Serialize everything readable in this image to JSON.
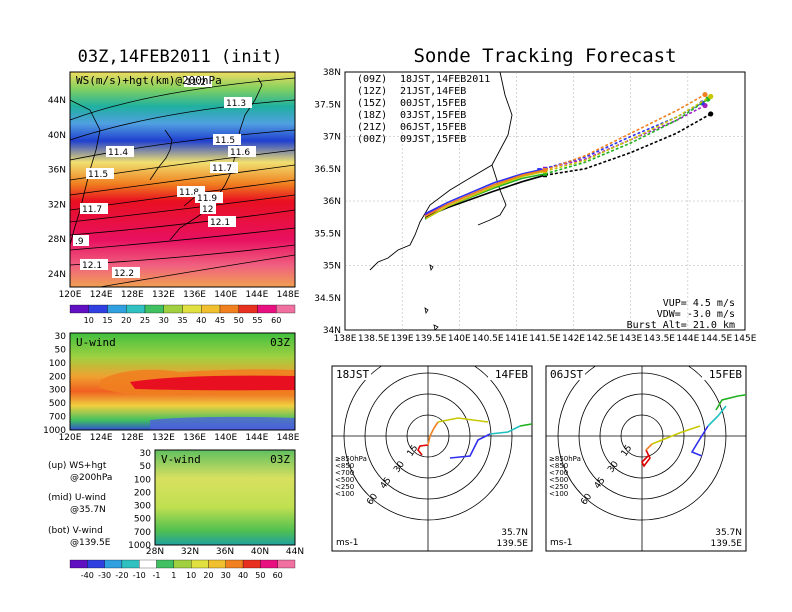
{
  "titles": {
    "left": "03Z,14FEB2011 (init)",
    "right": "Sonde Tracking Forecast"
  },
  "map_ws": {
    "label": "WS(m/s)+hgt(km)@200hPa",
    "y_ticks": [
      "44N",
      "40N",
      "36N",
      "32N",
      "28N",
      "24N"
    ],
    "x_ticks": [
      "120E",
      "124E",
      "128E",
      "132E",
      "136E",
      "140E",
      "144E",
      "148E"
    ],
    "hgt_labels": [
      "11.2",
      "11.3",
      "11.5",
      "11.6",
      "11.4",
      "11.7",
      "11.5",
      "11.8",
      "11.9",
      "12",
      "11.7",
      "12.1",
      ".9",
      "12.1",
      "12.2"
    ],
    "colorbar": [
      "10",
      "15",
      "20",
      "25",
      "30",
      "35",
      "40",
      "45",
      "50",
      "55",
      "60"
    ]
  },
  "u_wind": {
    "title": "U-wind",
    "time": "03Z",
    "y_ticks": [
      "30",
      "50",
      "100",
      "200",
      "300",
      "500",
      "700",
      "1000"
    ],
    "x_ticks": [
      "120E",
      "124E",
      "128E",
      "132E",
      "136E",
      "140E",
      "144E",
      "148E"
    ]
  },
  "v_wind": {
    "title": "V-wind",
    "time": "03Z",
    "y_ticks": [
      "30",
      "50",
      "100",
      "200",
      "300",
      "500",
      "700",
      "1000"
    ],
    "x_ticks": [
      "28N",
      "32N",
      "36N",
      "40N",
      "44N"
    ],
    "colorbar": [
      "-40",
      "-30",
      "-20",
      "-10",
      "-1",
      "1",
      "10",
      "20",
      "30",
      "40",
      "50",
      "60"
    ]
  },
  "legend_notes": [
    {
      "line1": "(up) WS+hgt",
      "line2": "@200hPa"
    },
    {
      "line1": "(mid) U-wind",
      "line2": "@35.7N"
    },
    {
      "line1": "(bot) V-wind",
      "line2": "@139.5E"
    }
  ],
  "track": {
    "y_ticks": [
      "38N",
      "37.5N",
      "37N",
      "36.5N",
      "36N",
      "35.5N",
      "35N",
      "34.5N",
      "34N"
    ],
    "x_ticks": [
      "138E",
      "138.5E",
      "139E",
      "139.5E",
      "140E",
      "140.5E",
      "141E",
      "141.5E",
      "142E",
      "142.5E",
      "143E",
      "143.5E",
      "144E",
      "144.5E",
      "145E"
    ],
    "runs": [
      {
        "z": "(09Z)",
        "label": "18JST,14FEB2011",
        "color": "#000000"
      },
      {
        "z": "(12Z)",
        "label": "21JST,14FEB",
        "color": "#a020c0"
      },
      {
        "z": "(15Z)",
        "label": "00JST,15FEB",
        "color": "#3030f0"
      },
      {
        "z": "(18Z)",
        "label": "03JST,15FEB",
        "color": "#20b020"
      },
      {
        "z": "(21Z)",
        "label": "06JST,15FEB",
        "color": "#c8c800"
      },
      {
        "z": "(00Z)",
        "label": "09JST,15FEB",
        "color": "#f08020"
      }
    ],
    "params": {
      "vup": "VUP= 4.5 m/s",
      "vdw": "VDW= -3.0 m/s",
      "burst": "Burst Alt= 21.0 km"
    }
  },
  "hodo_left": {
    "time": "18JST",
    "date": "14FEB",
    "ring_labels": [
      "15",
      "30",
      "45",
      "60"
    ],
    "levels": [
      {
        "label": "≥850hPa",
        "color": "#e00000"
      },
      {
        "label": "<850",
        "color": "#f08020"
      },
      {
        "label": "<700",
        "color": "#c8c800"
      },
      {
        "label": "<500",
        "color": "#20b020"
      },
      {
        "label": "<250",
        "color": "#20c0c0"
      },
      {
        "label": "<100",
        "color": "#3030f0"
      }
    ],
    "unit": "ms-1",
    "lat": "35.7N",
    "lon": "139.5E"
  },
  "hodo_right": {
    "time": "06JST",
    "date": "15FEB",
    "ring_labels": [
      "15",
      "30",
      "45",
      "60"
    ],
    "levels": [
      {
        "label": "≥850hPa",
        "color": "#e00000"
      },
      {
        "label": "<850",
        "color": "#f08020"
      },
      {
        "label": "<700",
        "color": "#c8c800"
      },
      {
        "label": "<500",
        "color": "#20b020"
      },
      {
        "label": "<250",
        "color": "#20c0c0"
      },
      {
        "label": "<100",
        "color": "#3030f0"
      }
    ],
    "unit": "ms-1",
    "lat": "35.7N",
    "lon": "139.5E"
  }
}
